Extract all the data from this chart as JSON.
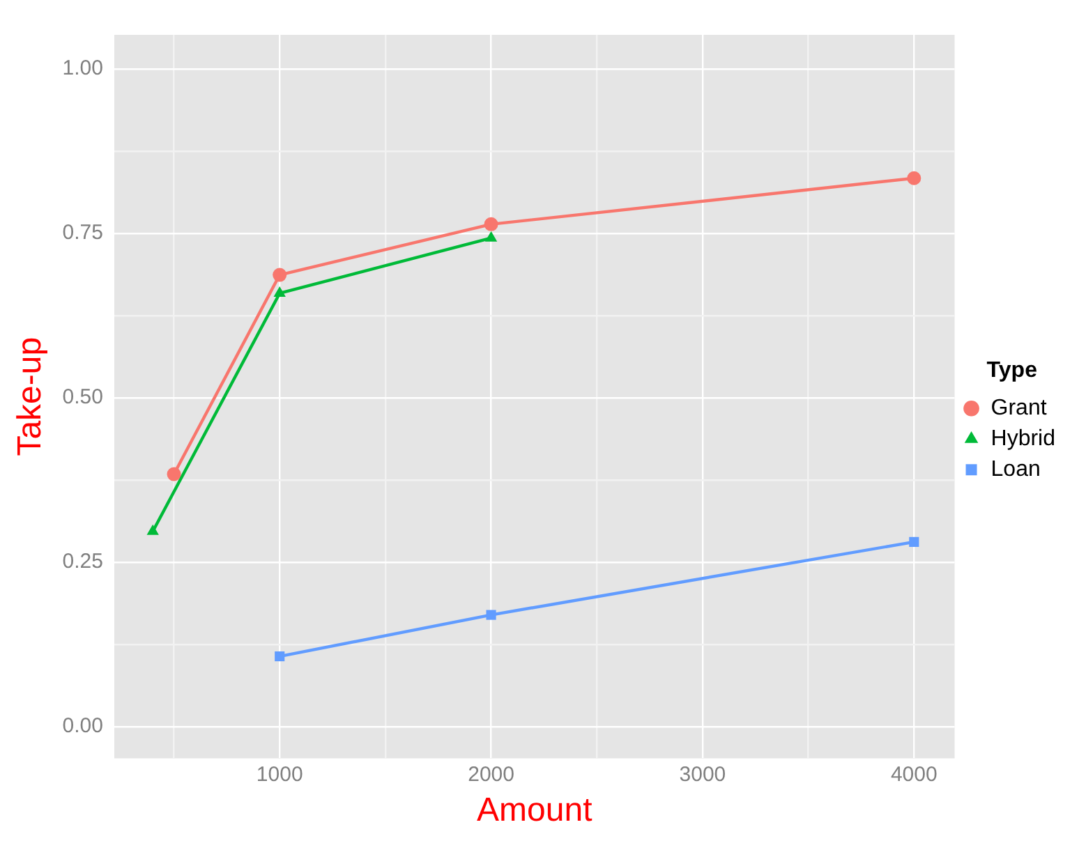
{
  "chart_data": {
    "type": "line",
    "xlabel": "Amount",
    "ylabel": "Take-up",
    "legend_title": "Type",
    "legend": "right",
    "grid": true,
    "xlim": [
      218,
      4192
    ],
    "ylim": [
      -0.048,
      1.052
    ],
    "xticks": [
      {
        "value": 500,
        "label": null
      },
      1000,
      {
        "value": 1500,
        "label": null
      },
      2000,
      {
        "value": 2500,
        "label": null
      },
      3000,
      {
        "value": 3500,
        "label": null
      },
      4000
    ],
    "yticks": [
      {
        "value": 0,
        "label": "0.00"
      },
      {
        "value": 0.125,
        "label": null
      },
      {
        "value": 0.25,
        "label": "0.25"
      },
      {
        "value": 0.375,
        "label": null
      },
      {
        "value": 0.5,
        "label": "0.50"
      },
      {
        "value": 0.625,
        "label": null
      },
      {
        "value": 0.75,
        "label": "0.75"
      },
      {
        "value": 0.875,
        "label": null
      },
      {
        "value": 1,
        "label": "1.00"
      }
    ],
    "series": [
      {
        "name": "Grant",
        "color": "#f8766d",
        "marker": "circle",
        "x": [
          500,
          1000,
          2000,
          4000
        ],
        "values": [
          0.384,
          0.687,
          0.764,
          0.834
        ]
      },
      {
        "name": "Hybrid",
        "color": "#00ba38",
        "marker": "triangle",
        "x": [
          400,
          1000,
          2000
        ],
        "values": [
          0.297,
          0.659,
          0.743
        ]
      },
      {
        "name": "Loan",
        "color": "#619cff",
        "marker": "square",
        "x": [
          1000,
          2000,
          4000
        ],
        "values": [
          0.107,
          0.17,
          0.281
        ]
      }
    ]
  }
}
